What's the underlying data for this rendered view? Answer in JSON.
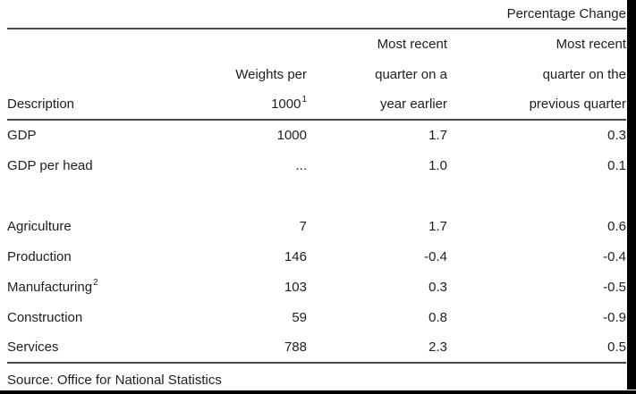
{
  "page": {
    "span_header": "Percentage Change",
    "source": "Source: Office for National Statistics"
  },
  "table": {
    "header": {
      "row1": {
        "c3": "Most recent",
        "c4": "Most recent"
      },
      "row2": {
        "c2": "Weights per",
        "c3": "quarter on a",
        "c4": "quarter on the"
      },
      "row3": {
        "c1": "Description",
        "c2": "1000",
        "c2_sup": "1",
        "c3": "year earlier",
        "c4": "previous quarter"
      }
    },
    "rows": [
      {
        "description": "GDP",
        "weights": "1000",
        "yoy": "1.7",
        "qoq": "0.3"
      },
      {
        "description": "GDP per head",
        "weights": "...",
        "yoy": "1.0",
        "qoq": "0.1"
      },
      {
        "description": "",
        "weights": "",
        "yoy": "",
        "qoq": ""
      },
      {
        "description": "Agriculture",
        "weights": "7",
        "yoy": "1.7",
        "qoq": "0.6"
      },
      {
        "description": "Production",
        "weights": "146",
        "yoy": "-0.4",
        "qoq": "-0.4"
      },
      {
        "description": "Manufacturing",
        "description_sup": "2",
        "weights": "103",
        "yoy": "0.3",
        "qoq": "-0.5"
      },
      {
        "description": "Construction",
        "weights": "59",
        "yoy": "0.8",
        "qoq": "-0.9"
      },
      {
        "description": "Services",
        "weights": "788",
        "yoy": "2.3",
        "qoq": "0.5"
      }
    ]
  },
  "colors": {
    "text": "#1e1e1e",
    "rule": "#4a4a4a",
    "page_edge": "#000000",
    "background": "#ffffff"
  }
}
